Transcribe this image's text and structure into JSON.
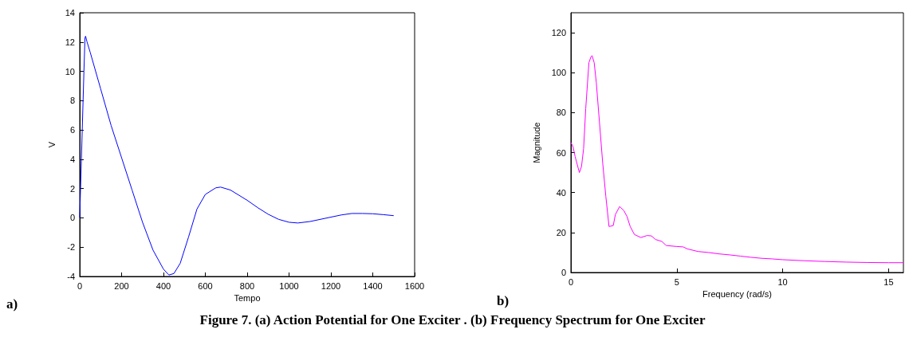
{
  "chart_data": [
    {
      "type": "line",
      "xlabel": "Tempo",
      "ylabel": "V",
      "annotations": [
        "a)"
      ],
      "xlim": [
        0,
        1600
      ],
      "ylim": [
        -4,
        14
      ],
      "xticks": [
        0,
        200,
        400,
        600,
        800,
        1000,
        1200,
        1400,
        1600
      ],
      "yticks": [
        -4,
        -2,
        0,
        2,
        4,
        6,
        8,
        10,
        12,
        14
      ],
      "grid": false,
      "marker": "none",
      "line_style": "solid",
      "series": [
        {
          "color": "#0000ff",
          "x": [
            0,
            3,
            8,
            12,
            16,
            20,
            25,
            28,
            35,
            50,
            100,
            150,
            200,
            250,
            300,
            350,
            400,
            426,
            450,
            480,
            520,
            560,
            600,
            650,
            673,
            720,
            800,
            850,
            900,
            950,
            1000,
            1042,
            1100,
            1200,
            1250,
            1300,
            1350,
            1400,
            1450,
            1500
          ],
          "values": [
            0,
            1.6,
            4,
            6,
            8,
            10,
            12.3,
            12.4,
            12,
            11.3,
            8.8,
            6.3,
            4.1,
            1.9,
            -0.3,
            -2.2,
            -3.5,
            -3.9,
            -3.8,
            -3.1,
            -1.3,
            0.6,
            1.6,
            2.05,
            2.1,
            1.9,
            1.2,
            0.7,
            0.25,
            -0.1,
            -0.3,
            -0.35,
            -0.25,
            0.05,
            0.2,
            0.3,
            0.3,
            0.28,
            0.22,
            0.15
          ]
        }
      ]
    },
    {
      "type": "line",
      "xlabel": "Frequency (rad/s)",
      "ylabel": "Magnitude",
      "annotations": [
        "b)",
        "Figure 7. (a) Action Potential for One Exciter . (b) Frequency Spectrum for One Exciter"
      ],
      "xlim": [
        0,
        15.7
      ],
      "ylim": [
        0,
        130
      ],
      "xticks": [
        0,
        5,
        10,
        15
      ],
      "yticks": [
        0,
        20,
        40,
        60,
        80,
        100,
        120
      ],
      "grid": false,
      "marker": "none",
      "line_style": "solid",
      "series": [
        {
          "color": "#ff00ff",
          "x": [
            0,
            0.1,
            0.2,
            0.4,
            0.5,
            0.6,
            0.7,
            0.85,
            0.95,
            1.0,
            1.1,
            1.2,
            1.35,
            1.5,
            1.65,
            1.8,
            2.0,
            2.1,
            2.3,
            2.5,
            2.65,
            2.8,
            3.0,
            3.3,
            3.6,
            3.8,
            4.0,
            4.3,
            4.5,
            5,
            5.3,
            5.5,
            6,
            6.5,
            7,
            7.5,
            8,
            8.5,
            9,
            9.5,
            10,
            11,
            12,
            13,
            14,
            15,
            15.7
          ],
          "values": [
            65,
            63,
            58,
            50,
            53,
            62,
            82,
            105,
            108,
            108.5,
            105,
            95,
            75,
            55,
            38,
            23,
            23.5,
            29,
            33,
            31,
            28,
            23,
            19,
            17.5,
            18.5,
            18.3,
            16.5,
            15.5,
            13.5,
            13,
            12.8,
            11.8,
            10.5,
            10,
            9.3,
            8.8,
            8.2,
            7.6,
            7.1,
            6.8,
            6.4,
            5.9,
            5.5,
            5.2,
            5.0,
            4.9,
            4.9
          ]
        }
      ]
    }
  ]
}
